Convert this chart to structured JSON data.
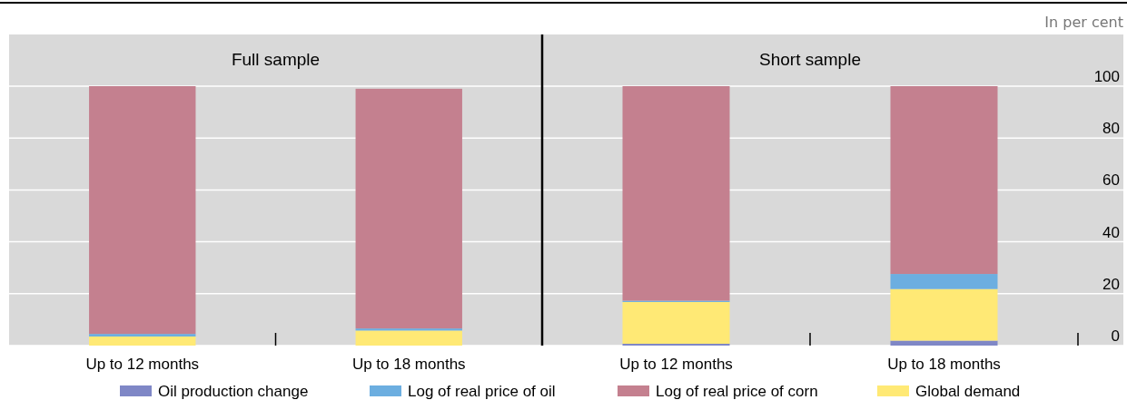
{
  "chart_data": [
    {
      "type": "bar",
      "title": "Full sample",
      "categories": [
        "Up to 12 months",
        "Up to 18 months"
      ],
      "stacked": true,
      "series": [
        {
          "color": "#ffe975",
          "values": [
            3.5,
            5.8
          ]
        },
        {
          "color": "#6caee0",
          "values": [
            1,
            0.8
          ]
        },
        {
          "color": "#c4808f",
          "values": [
            95.5,
            92.4
          ]
        }
      ],
      "ylim": [
        0,
        100
      ],
      "yticks": [
        0,
        20,
        40,
        60,
        80,
        100
      ],
      "grid": "y",
      "tick_labels": "x"
    },
    {
      "type": "bar",
      "title": "Short sample",
      "categories": [
        "Up to 12 months",
        "Up to 18 months"
      ],
      "stacked": true,
      "series": [
        {
          "name": "Oil production change",
          "color": "#7f87c6",
          "values": [
            0.7,
            1.9
          ]
        },
        {
          "name": "Global demand",
          "color": "#ffe975",
          "values": [
            16.1,
            19.9
          ]
        },
        {
          "name": "Log of real price of oil",
          "color": "#6caee0",
          "values": [
            0.5,
            5.8
          ]
        },
        {
          "name": "Log of real price of corn",
          "color": "#c4808f",
          "values": [
            82.7,
            72.4
          ]
        }
      ],
      "ylim": [
        0,
        100
      ],
      "yticks": [
        0,
        20,
        40,
        60,
        80,
        100
      ],
      "grid": "y",
      "legend": "bottom",
      "annotations": [
        "In per cent"
      ]
    }
  ]
}
